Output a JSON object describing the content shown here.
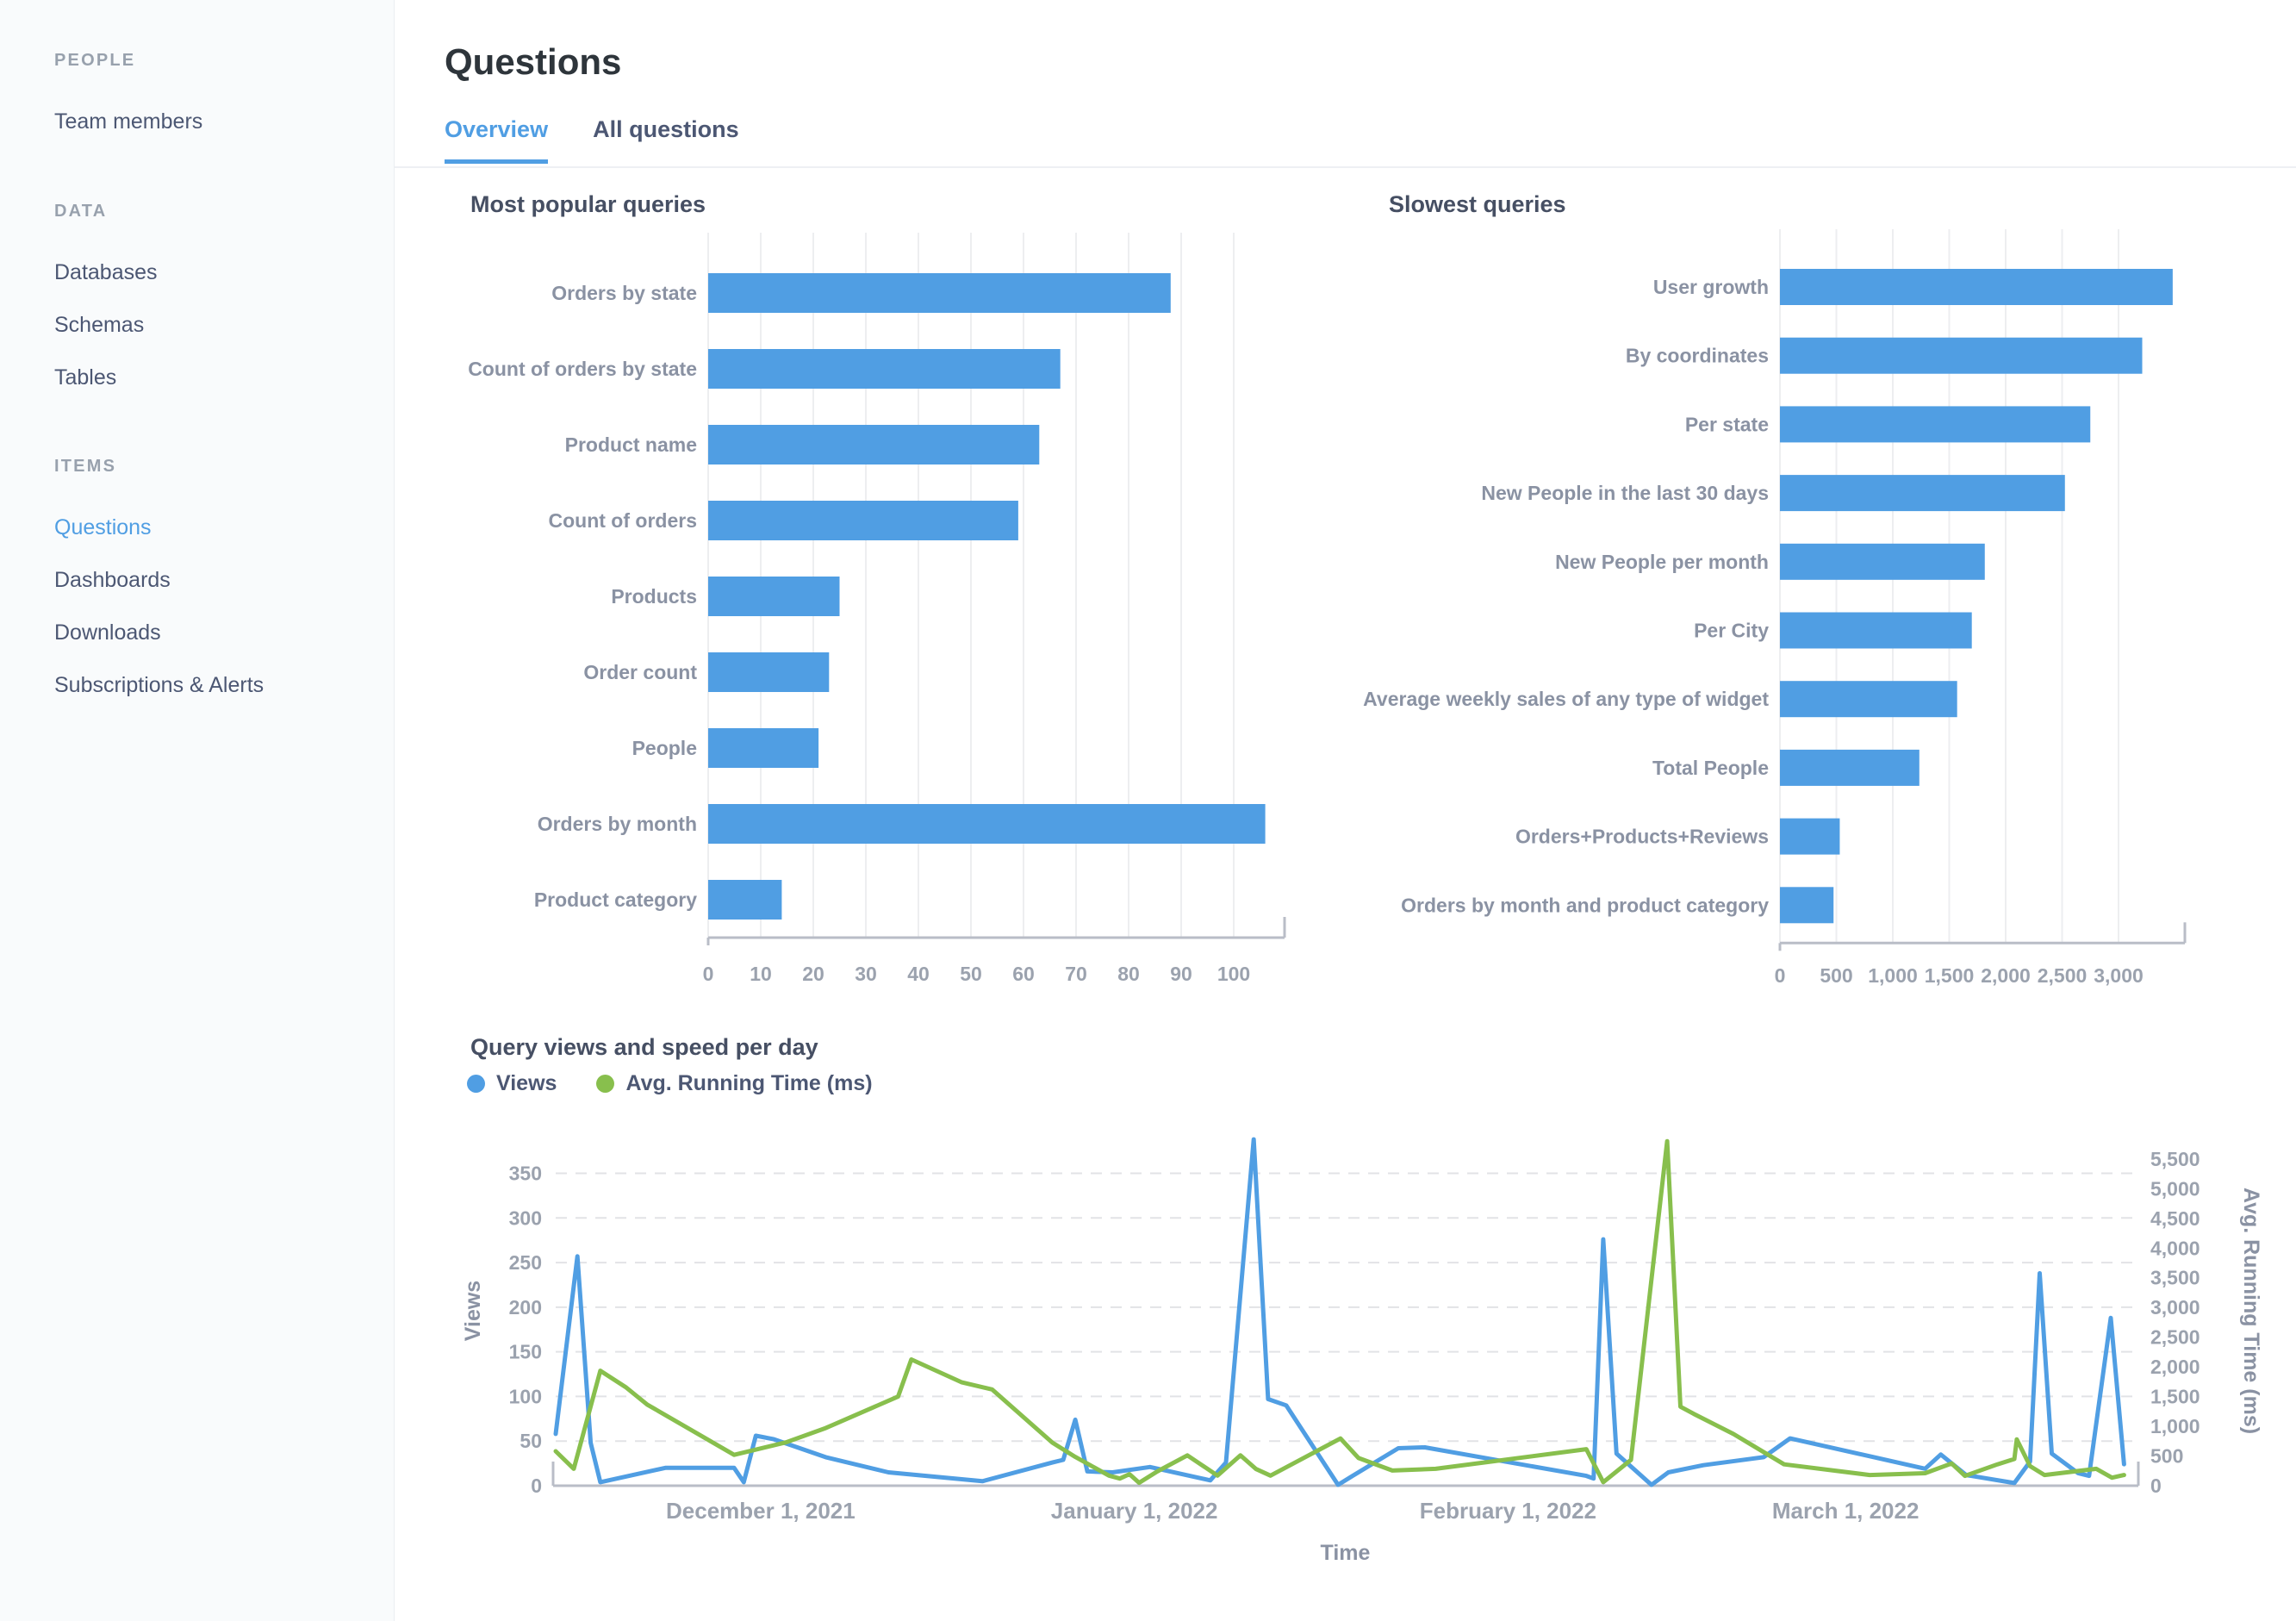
{
  "colors": {
    "accent": "#509EE3",
    "series_green": "#88BF4D",
    "sidebar_bg": "#F9FBFC",
    "grid": "#EDEEF0",
    "axis": "#B9BDC7"
  },
  "sidebar": {
    "sections": [
      {
        "label": "PEOPLE",
        "items": [
          {
            "label": "Team members",
            "active": false
          }
        ]
      },
      {
        "label": "DATA",
        "items": [
          {
            "label": "Databases",
            "active": false
          },
          {
            "label": "Schemas",
            "active": false
          },
          {
            "label": "Tables",
            "active": false
          }
        ]
      },
      {
        "label": "ITEMS",
        "items": [
          {
            "label": "Questions",
            "active": true
          },
          {
            "label": "Dashboards",
            "active": false
          },
          {
            "label": "Downloads",
            "active": false
          },
          {
            "label": "Subscriptions & Alerts",
            "active": false
          }
        ]
      }
    ]
  },
  "header": {
    "title": "Questions",
    "tabs": [
      {
        "label": "Overview",
        "active": true
      },
      {
        "label": "All questions",
        "active": false
      }
    ]
  },
  "chart_data": [
    {
      "type": "bar",
      "orientation": "horizontal",
      "title": "Most popular queries",
      "categories": [
        "Orders by state",
        "Count of orders by state",
        "Product name",
        "Count of orders",
        "Products",
        "Order count",
        "People",
        "Orders by month",
        "Product category"
      ],
      "values": [
        88,
        67,
        63,
        59,
        25,
        23,
        21,
        106,
        14
      ],
      "xlim": [
        0,
        108
      ],
      "x_ticks": [
        0,
        10,
        20,
        30,
        40,
        50,
        60,
        70,
        80,
        90,
        100
      ],
      "x_tick_labels": [
        "0",
        "10",
        "20",
        "30",
        "40",
        "50",
        "60",
        "70",
        "80",
        "90",
        "100"
      ],
      "bar_color": "#509EE3",
      "grid": true
    },
    {
      "type": "bar",
      "orientation": "horizontal",
      "title": "Slowest queries",
      "categories": [
        "User growth",
        "By coordinates",
        "Per state",
        "New People in the last 30 days",
        "New People per month",
        "Per City",
        "Average weekly sales of any type of widget",
        "Total People",
        "Orders+Products+Reviews",
        "Orders by month and product category"
      ],
      "values": [
        3480,
        3210,
        2750,
        2525,
        1815,
        1700,
        1570,
        1235,
        530,
        475
      ],
      "xlim": [
        0,
        3530
      ],
      "x_ticks": [
        0,
        500,
        1000,
        1500,
        2000,
        2500,
        3000
      ],
      "x_tick_labels": [
        "0",
        "500",
        "1,000",
        "1,500",
        "2,000",
        "2,500",
        "3,000"
      ],
      "bar_color": "#509EE3",
      "grid": true
    },
    {
      "type": "line",
      "title": "Query views and speed per day",
      "legend": [
        {
          "label": "Views",
          "color": "#509EE3"
        },
        {
          "label": "Avg. Running Time (ms)",
          "color": "#88BF4D"
        }
      ],
      "xlabel": "Time",
      "x_domain": [
        0,
        131
      ],
      "x_ticks": [
        {
          "x": 17,
          "label": "December 1, 2021"
        },
        {
          "x": 48,
          "label": "January 1, 2022"
        },
        {
          "x": 79,
          "label": "February 1, 2022"
        },
        {
          "x": 107,
          "label": "March 1, 2022"
        }
      ],
      "left_axis": {
        "title": "Views",
        "max": 392,
        "ticks": [
          0,
          50,
          100,
          150,
          200,
          250,
          300,
          350
        ],
        "tick_labels": [
          "0",
          "50",
          "100",
          "150",
          "200",
          "250",
          "300",
          "350"
        ]
      },
      "right_axis": {
        "title": "Avg. Running Time (ms)",
        "max": 5890,
        "ticks": [
          0,
          500,
          1000,
          1500,
          2000,
          2500,
          3000,
          3500,
          4000,
          4500,
          5000,
          5500
        ],
        "tick_labels": [
          "0",
          "500",
          "1,000",
          "1,500",
          "2,000",
          "2,500",
          "3,000",
          "3,500",
          "4,000",
          "4,500",
          "5,000",
          "5,500"
        ]
      },
      "series": [
        {
          "name": "Views",
          "axis": "left",
          "color": "#509EE3",
          "points": [
            [
              0,
              58
            ],
            [
              1.8,
              257
            ],
            [
              2.9,
              48
            ],
            [
              3.7,
              4
            ],
            [
              9.1,
              20
            ],
            [
              14.8,
              20
            ],
            [
              15.6,
              4
            ],
            [
              16.6,
              56
            ],
            [
              18.1,
              52
            ],
            [
              22.4,
              32
            ],
            [
              27.6,
              15
            ],
            [
              35.4,
              5
            ],
            [
              41.2,
              26
            ],
            [
              42.1,
              29
            ],
            [
              43.1,
              74
            ],
            [
              44.1,
              16
            ],
            [
              46.2,
              15
            ],
            [
              49.3,
              21
            ],
            [
              54.3,
              6
            ],
            [
              55.6,
              26
            ],
            [
              57.9,
              388
            ],
            [
              59.1,
              97
            ],
            [
              60.6,
              90
            ],
            [
              64.9,
              1
            ],
            [
              66.1,
              11
            ],
            [
              69.9,
              42
            ],
            [
              72.1,
              43
            ],
            [
              85.5,
              11
            ],
            [
              86.1,
              8
            ],
            [
              86.9,
              276
            ],
            [
              88,
              36
            ],
            [
              90.9,
              1
            ],
            [
              92.3,
              15
            ],
            [
              95.2,
              23
            ],
            [
              100.2,
              32
            ],
            [
              102.4,
              53
            ],
            [
              109,
              33
            ],
            [
              113.6,
              19
            ],
            [
              114.9,
              35
            ],
            [
              117,
              12
            ],
            [
              121,
              3
            ],
            [
              122.3,
              27
            ],
            [
              123.1,
              238
            ],
            [
              124.1,
              36
            ],
            [
              126.3,
              14
            ],
            [
              127.2,
              11
            ],
            [
              129,
              188
            ],
            [
              130.1,
              24
            ]
          ]
        },
        {
          "name": "Avg. Running Time (ms)",
          "axis": "right",
          "color": "#88BF4D",
          "points": [
            [
              0,
              580
            ],
            [
              1.5,
              285
            ],
            [
              3.7,
              1935
            ],
            [
              5.8,
              1660
            ],
            [
              7.6,
              1365
            ],
            [
              14.8,
              520
            ],
            [
              19.1,
              730
            ],
            [
              22.4,
              970
            ],
            [
              28.4,
              1500
            ],
            [
              29.5,
              2125
            ],
            [
              33.7,
              1740
            ],
            [
              36.2,
              1620
            ],
            [
              41.2,
              725
            ],
            [
              43.1,
              485
            ],
            [
              45.9,
              170
            ],
            [
              46.8,
              120
            ],
            [
              47.6,
              195
            ],
            [
              48.4,
              50
            ],
            [
              49.9,
              240
            ],
            [
              52.4,
              510
            ],
            [
              54.9,
              170
            ],
            [
              56.8,
              510
            ],
            [
              58.1,
              280
            ],
            [
              59.3,
              170
            ],
            [
              65.1,
              795
            ],
            [
              66.6,
              465
            ],
            [
              69.4,
              255
            ],
            [
              73,
              285
            ],
            [
              85.5,
              615
            ],
            [
              86.9,
              60
            ],
            [
              89.2,
              435
            ],
            [
              92.2,
              5800
            ],
            [
              93.3,
              1330
            ],
            [
              94.4,
              1210
            ],
            [
              97.7,
              870
            ],
            [
              101.9,
              360
            ],
            [
              109,
              180
            ],
            [
              113.6,
              210
            ],
            [
              115.8,
              375
            ],
            [
              116.9,
              165
            ],
            [
              119.6,
              360
            ],
            [
              121,
              450
            ],
            [
              121.2,
              780
            ],
            [
              122.3,
              330
            ],
            [
              123.5,
              180
            ],
            [
              127.8,
              285
            ],
            [
              129.1,
              135
            ],
            [
              130.1,
              180
            ]
          ]
        }
      ]
    }
  ]
}
